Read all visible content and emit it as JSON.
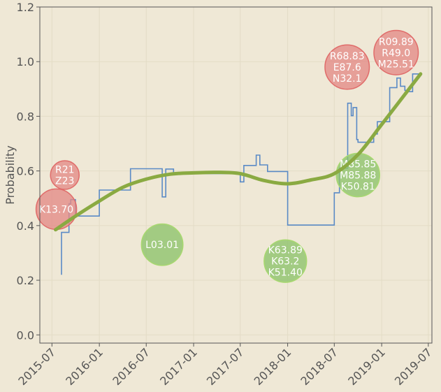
{
  "chart_data": {
    "type": "line",
    "title": "",
    "xlabel": "",
    "ylabel": "Probability",
    "xlim": [
      "2015-05-15",
      "2019-07-15"
    ],
    "ylim": [
      -0.03,
      1.2
    ],
    "grid": true,
    "x_ticks": [
      "2015-07",
      "2016-01",
      "2016-07",
      "2017-01",
      "2017-07",
      "2018-01",
      "2018-07",
      "2019-01",
      "2019-07"
    ],
    "y_ticks": [
      "0.0",
      "0.2",
      "0.4",
      "0.6",
      "0.8",
      "1.0",
      "1.2"
    ],
    "colors": {
      "background": "#efe8d6",
      "step": "#5a8ac6",
      "trend": "#8aaa42",
      "risk_bubble": "#e38a86",
      "risk_bubble_edge": "#e06c6a",
      "safe_bubble": "#8cc36a",
      "safe_bubble_edge": "#a8d870",
      "grid": "#e3dcc6",
      "axis": "#555555"
    },
    "series": [
      {
        "kind": "step",
        "x": [
          "2015-08-07",
          "2015-08-07",
          "2015-08-09",
          "2015-09-01",
          "2015-09-05",
          "2015-09-12",
          "2015-09-30",
          "2016-01-01",
          "2016-05-01",
          "2016-09-01",
          "2016-09-15",
          "2016-10-15",
          "2017-07-01",
          "2017-07-15",
          "2017-09-01",
          "2017-09-15",
          "2017-10-15",
          "2018-01-01",
          "2018-07-01",
          "2018-07-21",
          "2018-08-22",
          "2018-09-05",
          "2018-09-12",
          "2018-09-26",
          "2018-10-01",
          "2018-12-01",
          "2018-12-15",
          "2019-01-01",
          "2019-02-01",
          "2019-03-01",
          "2019-03-15",
          "2019-04-01",
          "2019-04-15",
          "2019-05-01",
          "2019-06-01"
        ],
        "y": [
          0.22,
          0.375,
          0.375,
          0.375,
          0.48,
          0.495,
          0.435,
          0.53,
          0.608,
          0.505,
          0.607,
          0.59,
          0.56,
          0.62,
          0.658,
          0.622,
          0.598,
          0.402,
          0.52,
          0.61,
          0.848,
          0.802,
          0.832,
          0.715,
          0.705,
          0.735,
          0.78,
          0.78,
          0.905,
          0.94,
          0.91,
          0.895,
          0.89,
          0.955,
          0.955
        ]
      },
      {
        "kind": "smooth",
        "x": [
          "2015-07-15",
          "2015-10-01",
          "2016-01-01",
          "2016-04-01",
          "2016-07-01",
          "2016-10-01",
          "2017-01-01",
          "2017-04-01",
          "2017-07-01",
          "2017-10-01",
          "2018-01-01",
          "2018-04-01",
          "2018-07-01",
          "2018-10-01",
          "2019-01-01",
          "2019-04-01",
          "2019-06-01"
        ],
        "y": [
          0.385,
          0.435,
          0.49,
          0.54,
          0.57,
          0.588,
          0.593,
          0.595,
          0.59,
          0.565,
          0.553,
          0.567,
          0.59,
          0.66,
          0.77,
          0.88,
          0.955
        ]
      }
    ],
    "bubbles": [
      {
        "x": "2015-07-18",
        "y": 0.46,
        "size": 400,
        "kind": "risk",
        "lines": [
          "K13.70"
        ]
      },
      {
        "x": "2015-08-20",
        "y": 0.585,
        "size": 200,
        "kind": "risk",
        "lines": [
          "R21",
          "Z23"
        ]
      },
      {
        "x": "2016-09-01",
        "y": 0.33,
        "size": 420,
        "kind": "safe",
        "lines": [
          "L03.01"
        ]
      },
      {
        "x": "2017-12-23",
        "y": 0.27,
        "size": 440,
        "kind": "safe",
        "lines": [
          "K63.89",
          "K63.2",
          "K51.40"
        ]
      },
      {
        "x": "2018-08-20",
        "y": 0.98,
        "size": 480,
        "kind": "risk",
        "lines": [
          "R68.83",
          "E87.6",
          "N32.1"
        ]
      },
      {
        "x": "2018-10-01",
        "y": 0.585,
        "size": 460,
        "kind": "safe",
        "lines": [
          "M85.85",
          "M85.88",
          "K50.81"
        ]
      },
      {
        "x": "2019-02-26",
        "y": 1.033,
        "size": 480,
        "kind": "risk",
        "lines": [
          "R09.89",
          "R49.0",
          "M25.51"
        ]
      }
    ]
  }
}
